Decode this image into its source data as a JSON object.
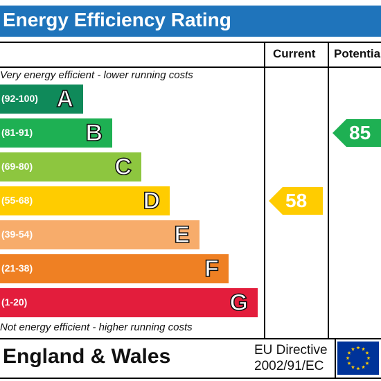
{
  "title": "Energy Efficiency Rating",
  "columns": {
    "current": "Current",
    "potential": "Potentia"
  },
  "captions": {
    "top": "Very energy efficient - lower running costs",
    "bottom": "Not energy efficient - higher running costs"
  },
  "bands": [
    {
      "range": "(92-100)",
      "letter": "A",
      "color": "#0f8a5a"
    },
    {
      "range": "(81-91)",
      "letter": "B",
      "color": "#1eb053"
    },
    {
      "range": "(69-80)",
      "letter": "C",
      "color": "#8dc63f"
    },
    {
      "range": "(55-68)",
      "letter": "D",
      "color": "#ffcc00"
    },
    {
      "range": "(39-54)",
      "letter": "E",
      "color": "#f7ac6b"
    },
    {
      "range": "(21-38)",
      "letter": "F",
      "color": "#ef8023"
    },
    {
      "range": "(1-20)",
      "letter": "G",
      "color": "#e31d3c"
    }
  ],
  "ratings": {
    "current": {
      "value": "58",
      "band": "D",
      "color": "#ffcc00"
    },
    "potential": {
      "value": "85",
      "band": "B",
      "color": "#1eb053"
    }
  },
  "footer": {
    "region": "England & Wales",
    "directive_line1": "EU Directive",
    "directive_line2": "2002/91/EC",
    "flag_icon": "eu-flag-icon",
    "flag_color": "#003399",
    "star_color": "#ffcc00"
  }
}
